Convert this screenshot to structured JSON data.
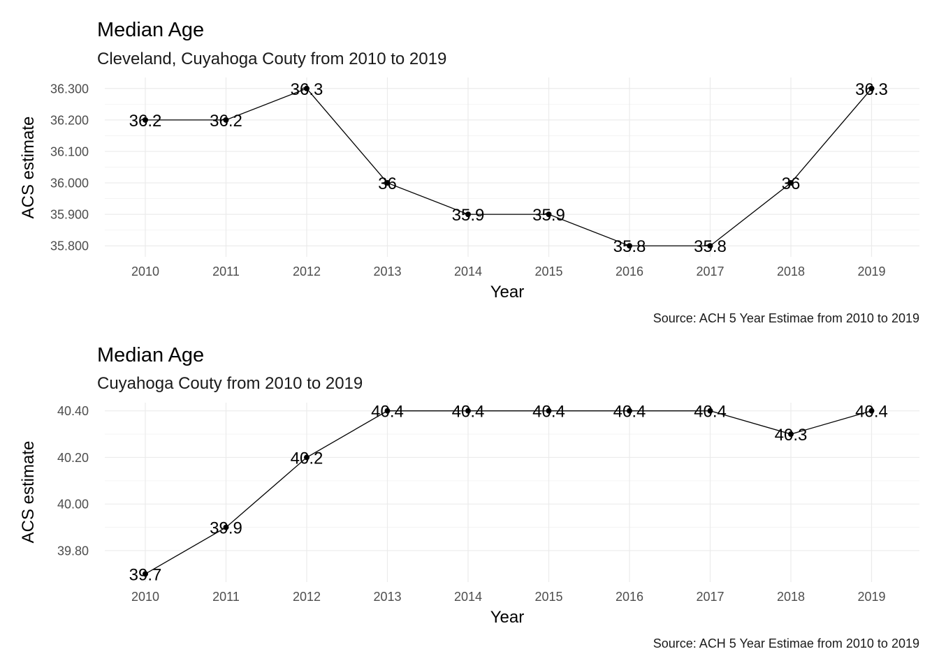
{
  "chart_data": [
    {
      "type": "line",
      "title": "Median Age",
      "subtitle": "Cleveland, Cuyahoga Couty from 2010 to 2019",
      "xlabel": "Year",
      "ylabel": "ACS estimate",
      "caption": "Source: ACH 5 Year Estimae from 2010 to 2019",
      "x": [
        "2010",
        "2011",
        "2012",
        "2013",
        "2014",
        "2015",
        "2016",
        "2017",
        "2018",
        "2019"
      ],
      "series": [
        {
          "values": [
            36.2,
            36.2,
            36.3,
            36.0,
            35.9,
            35.9,
            35.8,
            35.8,
            36.0,
            36.3
          ]
        }
      ],
      "point_labels": [
        "36.2",
        "36.2",
        "36.3",
        "36",
        "35.9",
        "35.9",
        "35.8",
        "35.8",
        "36",
        "36.3"
      ],
      "yticks": [
        "35.800",
        "35.900",
        "36.000",
        "36.100",
        "36.200",
        "36.300"
      ],
      "ytick_values": [
        35.8,
        35.9,
        36.0,
        36.1,
        36.2,
        36.3
      ],
      "ylim": [
        35.765,
        36.335
      ],
      "grid": true
    },
    {
      "type": "line",
      "title": "Median Age",
      "subtitle": "Cuyahoga Couty from 2010 to 2019",
      "xlabel": "Year",
      "ylabel": "ACS estimate",
      "caption": "Source: ACH 5 Year Estimae from 2010 to 2019",
      "x": [
        "2010",
        "2011",
        "2012",
        "2013",
        "2014",
        "2015",
        "2016",
        "2017",
        "2018",
        "2019"
      ],
      "series": [
        {
          "values": [
            39.7,
            39.9,
            40.2,
            40.4,
            40.4,
            40.4,
            40.4,
            40.4,
            40.3,
            40.4
          ]
        }
      ],
      "point_labels": [
        "39.7",
        "39.9",
        "40.2",
        "40.4",
        "40.4",
        "40.4",
        "40.4",
        "40.4",
        "40.3",
        "40.4"
      ],
      "yticks": [
        "39.80",
        "40.00",
        "40.20",
        "40.40"
      ],
      "ytick_values": [
        39.8,
        40.0,
        40.2,
        40.4
      ],
      "ylim": [
        39.665,
        40.435
      ],
      "grid": true
    }
  ]
}
